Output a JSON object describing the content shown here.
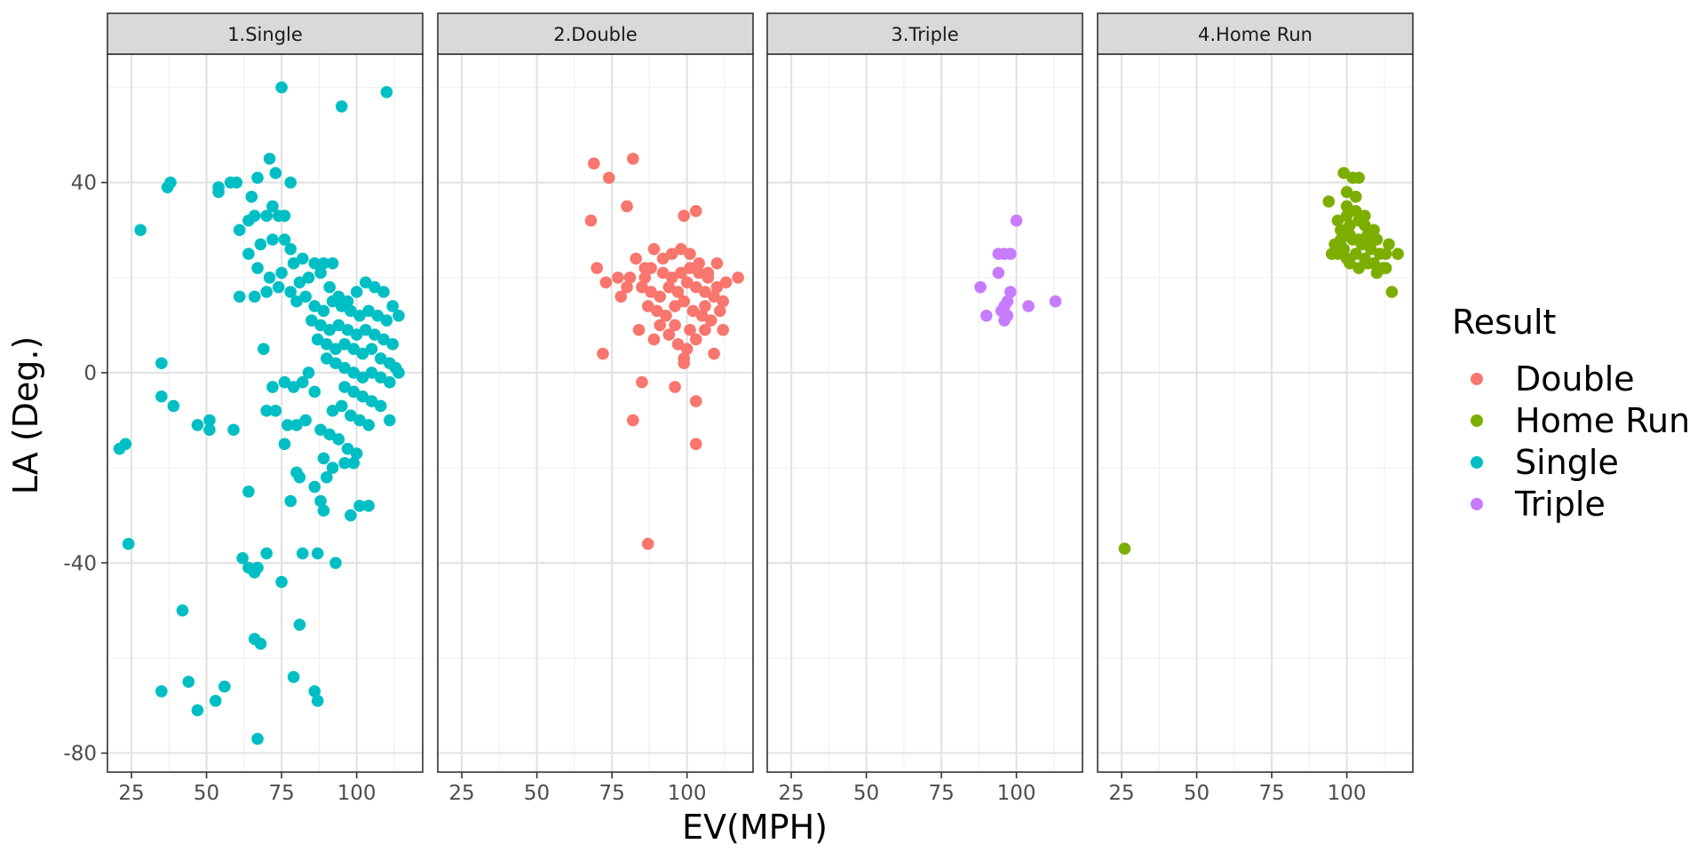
{
  "chart_data": {
    "type": "scatter",
    "facet_by": "Result",
    "xlabel": "EV(MPH)",
    "ylabel": "LA (Deg.)",
    "xlim": [
      17,
      122
    ],
    "ylim": [
      -84,
      67
    ],
    "x_ticks": [
      25,
      50,
      75,
      100
    ],
    "y_ticks": [
      -80,
      -40,
      0,
      40
    ],
    "grid": true,
    "legend": {
      "title": "Result",
      "placement": "right",
      "items": [
        {
          "label": "Double",
          "color": "#F8766D"
        },
        {
          "label": "Home Run",
          "color": "#7CAE00"
        },
        {
          "label": "Single",
          "color": "#00BFC4"
        },
        {
          "label": "Triple",
          "color": "#C77CFF"
        }
      ]
    },
    "panels": [
      {
        "label": "1.Single",
        "series": "Single",
        "color": "#00BFC4",
        "points": [
          [
            75,
            60
          ],
          [
            95,
            56
          ],
          [
            110,
            59
          ],
          [
            28,
            30
          ],
          [
            37,
            39
          ],
          [
            38,
            40
          ],
          [
            54,
            38
          ],
          [
            54,
            39
          ],
          [
            58,
            40
          ],
          [
            60,
            40
          ],
          [
            65,
            37
          ],
          [
            67,
            41
          ],
          [
            71,
            45
          ],
          [
            73,
            42
          ],
          [
            78,
            40
          ],
          [
            61,
            30
          ],
          [
            64,
            32
          ],
          [
            66,
            33
          ],
          [
            70,
            33
          ],
          [
            72,
            35
          ],
          [
            74,
            33
          ],
          [
            76,
            33
          ],
          [
            64,
            25
          ],
          [
            68,
            27
          ],
          [
            72,
            28
          ],
          [
            76,
            28
          ],
          [
            78,
            26
          ],
          [
            67,
            22
          ],
          [
            71,
            20
          ],
          [
            75,
            21
          ],
          [
            79,
            23
          ],
          [
            82,
            24
          ],
          [
            86,
            23
          ],
          [
            89,
            23
          ],
          [
            92,
            23
          ],
          [
            61,
            16
          ],
          [
            66,
            16
          ],
          [
            70,
            17
          ],
          [
            74,
            18
          ],
          [
            78,
            17
          ],
          [
            81,
            19
          ],
          [
            84,
            20
          ],
          [
            88,
            21
          ],
          [
            91,
            18
          ],
          [
            94,
            16
          ],
          [
            97,
            15
          ],
          [
            100,
            17
          ],
          [
            103,
            19
          ],
          [
            106,
            18
          ],
          [
            109,
            17
          ],
          [
            112,
            14
          ],
          [
            114,
            12
          ],
          [
            80,
            15
          ],
          [
            83,
            16
          ],
          [
            86,
            14
          ],
          [
            89,
            13
          ],
          [
            92,
            15
          ],
          [
            95,
            14
          ],
          [
            98,
            13
          ],
          [
            101,
            12
          ],
          [
            104,
            13
          ],
          [
            107,
            12
          ],
          [
            110,
            11
          ],
          [
            85,
            11
          ],
          [
            88,
            10
          ],
          [
            91,
            9
          ],
          [
            94,
            10
          ],
          [
            97,
            9
          ],
          [
            100,
            8
          ],
          [
            103,
            9
          ],
          [
            106,
            8
          ],
          [
            109,
            7
          ],
          [
            112,
            6
          ],
          [
            87,
            7
          ],
          [
            90,
            6
          ],
          [
            93,
            5
          ],
          [
            96,
            6
          ],
          [
            99,
            5
          ],
          [
            102,
            4
          ],
          [
            105,
            5
          ],
          [
            108,
            3
          ],
          [
            111,
            2
          ],
          [
            113,
            1
          ],
          [
            114,
            0
          ],
          [
            90,
            3
          ],
          [
            93,
            2
          ],
          [
            96,
            1
          ],
          [
            99,
            0
          ],
          [
            102,
            -1
          ],
          [
            105,
            0
          ],
          [
            108,
            -1
          ],
          [
            111,
            -2
          ],
          [
            96,
            -3
          ],
          [
            99,
            -4
          ],
          [
            102,
            -5
          ],
          [
            105,
            -6
          ],
          [
            108,
            -7
          ],
          [
            111,
            -10
          ],
          [
            92,
            -8
          ],
          [
            95,
            -7
          ],
          [
            98,
            -9
          ],
          [
            101,
            -10
          ],
          [
            104,
            -11
          ],
          [
            88,
            -12
          ],
          [
            91,
            -13
          ],
          [
            94,
            -14
          ],
          [
            97,
            -16
          ],
          [
            100,
            -17
          ],
          [
            89,
            -18
          ],
          [
            92,
            -20
          ],
          [
            96,
            -19
          ],
          [
            99,
            -19
          ],
          [
            86,
            -24
          ],
          [
            88,
            -27
          ],
          [
            90,
            -22
          ],
          [
            89,
            -29
          ],
          [
            98,
            -30
          ],
          [
            101,
            -28
          ],
          [
            104,
            -28
          ],
          [
            93,
            -40
          ],
          [
            82,
            -38
          ],
          [
            87,
            -38
          ],
          [
            70,
            -38
          ],
          [
            75,
            -44
          ],
          [
            62,
            -39
          ],
          [
            64,
            -41
          ],
          [
            66,
            -42
          ],
          [
            67,
            -41
          ],
          [
            66,
            -56
          ],
          [
            68,
            -57
          ],
          [
            81,
            -53
          ],
          [
            79,
            -64
          ],
          [
            86,
            -67
          ],
          [
            87,
            -69
          ],
          [
            42,
            -50
          ],
          [
            35,
            -67
          ],
          [
            44,
            -65
          ],
          [
            47,
            -71
          ],
          [
            53,
            -69
          ],
          [
            56,
            -66
          ],
          [
            67,
            -77
          ],
          [
            21,
            -16
          ],
          [
            23,
            -15
          ],
          [
            24,
            -36
          ],
          [
            35,
            2
          ],
          [
            35,
            -5
          ],
          [
            39,
            -7
          ],
          [
            47,
            -11
          ],
          [
            51,
            -10
          ],
          [
            51,
            -12
          ],
          [
            59,
            -12
          ],
          [
            70,
            -8
          ],
          [
            73,
            -8
          ],
          [
            77,
            -11
          ],
          [
            80,
            -11
          ],
          [
            83,
            -10
          ],
          [
            76,
            -15
          ],
          [
            80,
            -21
          ],
          [
            81,
            -22
          ],
          [
            64,
            -25
          ],
          [
            78,
            -27
          ],
          [
            69,
            5
          ],
          [
            72,
            -3
          ],
          [
            76,
            -2
          ],
          [
            79,
            -3
          ],
          [
            82,
            -2
          ],
          [
            84,
            0
          ],
          [
            86,
            -4
          ]
        ]
      },
      {
        "label": "2.Double",
        "series": "Double",
        "color": "#F8766D",
        "points": [
          [
            69,
            44
          ],
          [
            74,
            41
          ],
          [
            82,
            45
          ],
          [
            68,
            32
          ],
          [
            80,
            35
          ],
          [
            103,
            34
          ],
          [
            99,
            33
          ],
          [
            70,
            22
          ],
          [
            73,
            19
          ],
          [
            77,
            20
          ],
          [
            80,
            18
          ],
          [
            83,
            24
          ],
          [
            86,
            22
          ],
          [
            89,
            26
          ],
          [
            92,
            24
          ],
          [
            95,
            25
          ],
          [
            98,
            26
          ],
          [
            101,
            25
          ],
          [
            104,
            23
          ],
          [
            107,
            21
          ],
          [
            110,
            23
          ],
          [
            113,
            19
          ],
          [
            117,
            20
          ],
          [
            85,
            18
          ],
          [
            88,
            17
          ],
          [
            91,
            16
          ],
          [
            94,
            18
          ],
          [
            97,
            17
          ],
          [
            100,
            19
          ],
          [
            103,
            18
          ],
          [
            106,
            17
          ],
          [
            109,
            16
          ],
          [
            112,
            15
          ],
          [
            87,
            14
          ],
          [
            90,
            13
          ],
          [
            93,
            12
          ],
          [
            96,
            14
          ],
          [
            99,
            15
          ],
          [
            102,
            13
          ],
          [
            105,
            12
          ],
          [
            108,
            11
          ],
          [
            111,
            13
          ],
          [
            84,
            9
          ],
          [
            89,
            7
          ],
          [
            94,
            8
          ],
          [
            97,
            6
          ],
          [
            100,
            5
          ],
          [
            103,
            7
          ],
          [
            106,
            9
          ],
          [
            109,
            4
          ],
          [
            112,
            9
          ],
          [
            99,
            3
          ],
          [
            99,
            2
          ],
          [
            96,
            -3
          ],
          [
            85,
            -2
          ],
          [
            103,
            -6
          ],
          [
            82,
            -10
          ],
          [
            103,
            -15
          ],
          [
            87,
            -36
          ],
          [
            72,
            4
          ],
          [
            78,
            16
          ],
          [
            81,
            20
          ],
          [
            86,
            20
          ],
          [
            88,
            22
          ],
          [
            92,
            21
          ],
          [
            95,
            20
          ],
          [
            98,
            21
          ],
          [
            101,
            22
          ],
          [
            104,
            21
          ],
          [
            107,
            20
          ],
          [
            110,
            18
          ],
          [
            91,
            10
          ],
          [
            96,
            10
          ],
          [
            101,
            9
          ],
          [
            106,
            14
          ]
        ]
      },
      {
        "label": "3.Triple",
        "series": "Triple",
        "color": "#C77CFF",
        "points": [
          [
            100,
            32
          ],
          [
            94,
            25
          ],
          [
            96,
            25
          ],
          [
            98,
            25
          ],
          [
            94,
            21
          ],
          [
            88,
            18
          ],
          [
            98,
            17
          ],
          [
            96,
            14
          ],
          [
            97,
            15
          ],
          [
            95,
            13
          ],
          [
            97,
            12
          ],
          [
            90,
            12
          ],
          [
            96,
            11
          ],
          [
            104,
            14
          ],
          [
            113,
            15
          ]
        ]
      },
      {
        "label": "4.Home Run",
        "series": "Home Run",
        "color": "#7CAE00",
        "points": [
          [
            99,
            42
          ],
          [
            102,
            41
          ],
          [
            104,
            41
          ],
          [
            94,
            36
          ],
          [
            100,
            38
          ],
          [
            103,
            37
          ],
          [
            97,
            32
          ],
          [
            100,
            33
          ],
          [
            103,
            34
          ],
          [
            106,
            31
          ],
          [
            109,
            30
          ],
          [
            98,
            30
          ],
          [
            101,
            31
          ],
          [
            104,
            32
          ],
          [
            107,
            29
          ],
          [
            110,
            28
          ],
          [
            96,
            27
          ],
          [
            99,
            26
          ],
          [
            102,
            28
          ],
          [
            105,
            27
          ],
          [
            108,
            26
          ],
          [
            111,
            25
          ],
          [
            114,
            27
          ],
          [
            97,
            25
          ],
          [
            100,
            24
          ],
          [
            103,
            25
          ],
          [
            106,
            24
          ],
          [
            109,
            23
          ],
          [
            112,
            22
          ],
          [
            117,
            25
          ],
          [
            101,
            23
          ],
          [
            104,
            22
          ],
          [
            107,
            23
          ],
          [
            110,
            21
          ],
          [
            113,
            22
          ],
          [
            115,
            17
          ],
          [
            26,
            -37
          ],
          [
            98,
            28
          ],
          [
            101,
            29
          ],
          [
            104,
            28
          ],
          [
            107,
            27
          ],
          [
            100,
            35
          ],
          [
            106,
            33
          ],
          [
            95,
            25
          ],
          [
            113,
            25
          ]
        ]
      }
    ]
  }
}
